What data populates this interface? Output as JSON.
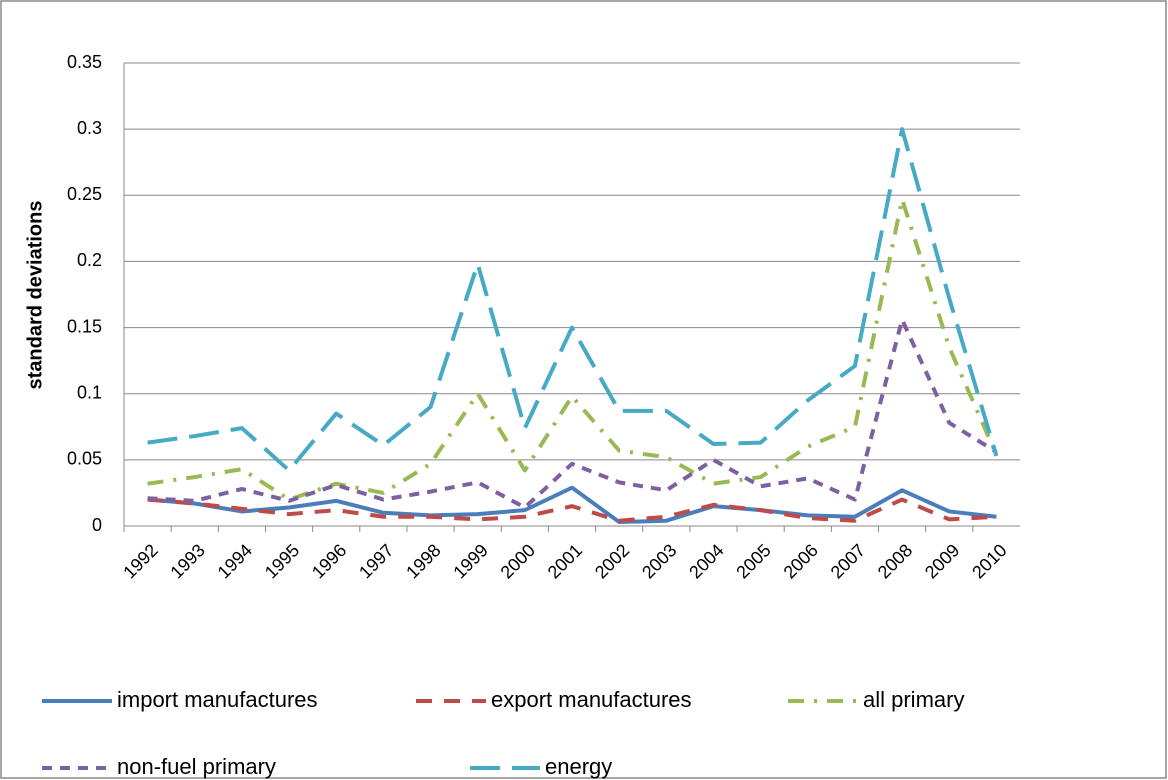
{
  "chart_data": {
    "type": "line",
    "y_label": "standard deviations",
    "categories": [
      "1992",
      "1993",
      "1994",
      "1995",
      "1996",
      "1997",
      "1998",
      "1999",
      "2000",
      "2001",
      "2002",
      "2003",
      "2004",
      "2005",
      "2006",
      "2007",
      "2008",
      "2009",
      "2010"
    ],
    "ylim": [
      0,
      0.35
    ],
    "yticks": [
      0,
      0.05,
      0.1,
      0.15,
      0.2,
      0.25,
      0.3,
      0.35
    ],
    "grid": true,
    "legend": "bottom",
    "series": [
      {
        "name": "import manufactures",
        "color": "#4a7ebb",
        "linestyle": "solid",
        "values": [
          0.02,
          0.017,
          0.011,
          0.014,
          0.019,
          0.01,
          0.008,
          0.009,
          0.012,
          0.029,
          0.003,
          0.004,
          0.015,
          0.012,
          0.008,
          0.007,
          0.027,
          0.011,
          0.007
        ]
      },
      {
        "name": "export manufactures",
        "color": "#be4b48",
        "linestyle": "dashed",
        "values": [
          0.02,
          0.017,
          0.013,
          0.009,
          0.012,
          0.007,
          0.007,
          0.005,
          0.007,
          0.015,
          0.004,
          0.007,
          0.016,
          0.012,
          0.006,
          0.004,
          0.02,
          0.005,
          0.007
        ]
      },
      {
        "name": "all primary",
        "color": "#98b954",
        "linestyle": "dashdot",
        "values": [
          0.032,
          0.037,
          0.043,
          0.02,
          0.032,
          0.025,
          0.047,
          0.1,
          0.042,
          0.098,
          0.057,
          0.052,
          0.032,
          0.037,
          0.06,
          0.075,
          0.247,
          0.135,
          0.054
        ]
      },
      {
        "name": "non-fuel primary",
        "color": "#7d60a0",
        "linestyle": "shortdash",
        "values": [
          0.021,
          0.019,
          0.028,
          0.019,
          0.031,
          0.02,
          0.026,
          0.033,
          0.014,
          0.047,
          0.033,
          0.027,
          0.05,
          0.03,
          0.036,
          0.02,
          0.156,
          0.078,
          0.056
        ]
      },
      {
        "name": "energy",
        "color": "#46aac5",
        "linestyle": "longdash",
        "values": [
          0.063,
          0.068,
          0.074,
          0.042,
          0.085,
          0.061,
          0.09,
          0.198,
          0.074,
          0.15,
          0.087,
          0.087,
          0.062,
          0.063,
          0.095,
          0.121,
          0.3,
          0.172,
          0.053
        ]
      }
    ]
  }
}
